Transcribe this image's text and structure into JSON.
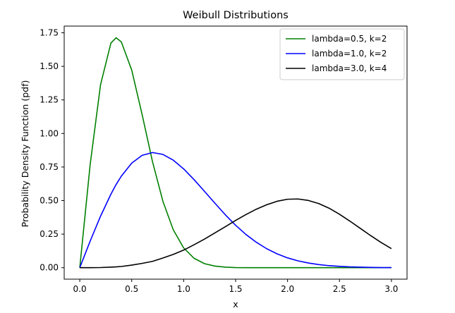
{
  "chart_data": {
    "type": "line",
    "title": "Weibull Distributions",
    "xlabel": "x",
    "ylabel": "Probability Density Function (pdf)",
    "xlim": [
      -0.15,
      3.15
    ],
    "ylim": [
      -0.0855,
      1.8
    ],
    "xticks": [
      0.0,
      0.5,
      1.0,
      1.5,
      2.0,
      2.5,
      3.0
    ],
    "xtick_labels": [
      "0.0",
      "0.5",
      "1.0",
      "1.5",
      "2.0",
      "2.5",
      "3.0"
    ],
    "yticks": [
      0.0,
      0.25,
      0.5,
      0.75,
      1.0,
      1.25,
      1.5,
      1.75
    ],
    "ytick_labels": [
      "0.00",
      "0.25",
      "0.50",
      "0.75",
      "1.00",
      "1.25",
      "1.50",
      "1.75"
    ],
    "grid": false,
    "legend_position": "top-right",
    "x": [
      0.0,
      0.1,
      0.2,
      0.3,
      0.35,
      0.4,
      0.5,
      0.6,
      0.7,
      0.8,
      0.9,
      1.0,
      1.1,
      1.2,
      1.3,
      1.4,
      1.5,
      1.6,
      1.7,
      1.8,
      1.9,
      2.0,
      2.1,
      2.2,
      2.3,
      2.4,
      2.5,
      2.6,
      2.7,
      2.8,
      2.9,
      3.0
    ],
    "series": [
      {
        "name": "lambda=0.5, k=2",
        "color": "#008000",
        "values": [
          0.0,
          0.769,
          1.364,
          1.674,
          1.713,
          1.682,
          1.472,
          1.141,
          0.79,
          0.495,
          0.282,
          0.147,
          0.07,
          0.03,
          0.012,
          0.004,
          0.001,
          0.0004,
          0.0001,
          0.0,
          0.0,
          0.0,
          0.0,
          0.0,
          0.0,
          0.0,
          0.0,
          0.0,
          0.0,
          0.0,
          0.0,
          0.0
        ]
      },
      {
        "name": "lambda=1.0, k=2",
        "color": "#0000ff",
        "values": [
          0.0,
          0.198,
          0.384,
          0.548,
          0.62,
          0.682,
          0.779,
          0.837,
          0.858,
          0.844,
          0.801,
          0.736,
          0.656,
          0.569,
          0.481,
          0.395,
          0.316,
          0.247,
          0.189,
          0.141,
          0.103,
          0.073,
          0.051,
          0.035,
          0.023,
          0.015,
          0.01,
          0.006,
          0.004,
          0.002,
          0.001,
          0.0007
        ]
      },
      {
        "name": "lambda=3.0, k=4",
        "color": "#000000",
        "values": [
          0.0,
          0.0002,
          0.0012,
          0.004,
          0.006,
          0.009,
          0.019,
          0.032,
          0.047,
          0.072,
          0.099,
          0.131,
          0.171,
          0.213,
          0.259,
          0.305,
          0.352,
          0.396,
          0.436,
          0.469,
          0.495,
          0.51,
          0.512,
          0.501,
          0.478,
          0.443,
          0.398,
          0.347,
          0.293,
          0.239,
          0.188,
          0.142
        ]
      }
    ]
  }
}
